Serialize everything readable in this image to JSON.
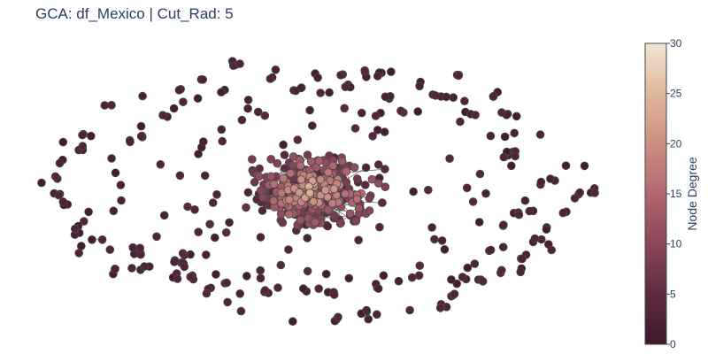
{
  "chart_data": {
    "type": "scatter",
    "title": "GCA: df_Mexico | Cut_Rad: 5",
    "xlabel": "",
    "ylabel": "",
    "colorbar": {
      "title": "Node Degree",
      "min": 0,
      "max": 30,
      "ticks": [
        "0",
        "5",
        "10",
        "15",
        "20",
        "25",
        "30"
      ]
    },
    "grid": false,
    "legend": "none",
    "colorscale": [
      "#3e1a2e",
      "#5f2b42",
      "#8a4658",
      "#b26770",
      "#cc8f82",
      "#e0b79c",
      "#efe6d4"
    ],
    "node_line_color": "#4a4a4a",
    "edge_color": "#2b2b2b"
  }
}
